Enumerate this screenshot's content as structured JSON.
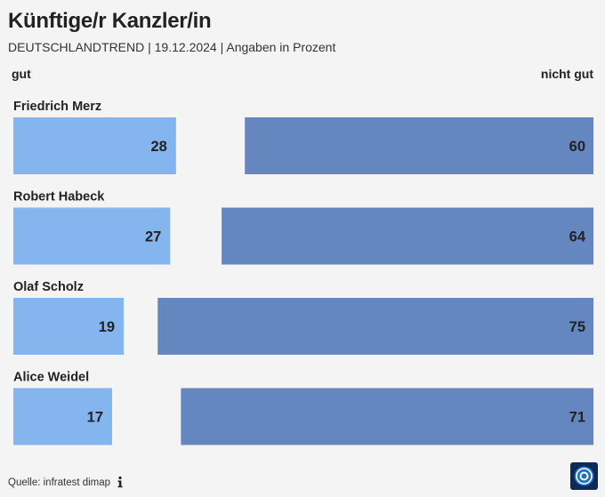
{
  "header": {
    "title": "Künftige/r Kanzler/in",
    "subtitle": "DEUTSCHLANDTREND | 19.12.2024 | Angaben in Prozent"
  },
  "columns": {
    "left": "gut",
    "right": "nicht gut"
  },
  "footer": {
    "source": "Quelle: infratest dimap",
    "info_icon": "info-icon",
    "logo_icon": "tagesschau-logo-icon"
  },
  "colors": {
    "gut": "#85b5ee",
    "nicht_gut": "#6387be",
    "background": "#f4f4f4"
  },
  "chart_data": {
    "type": "bar",
    "title": "Künftige/r Kanzler/in",
    "subtitle": "DEUTSCHLANDTREND | 19.12.2024 | Angaben in Prozent",
    "categories": [
      "Friedrich Merz",
      "Robert Habeck",
      "Olaf Scholz",
      "Alice Weidel"
    ],
    "series": [
      {
        "name": "gut",
        "values": [
          28,
          27,
          19,
          17
        ]
      },
      {
        "name": "nicht gut",
        "values": [
          60,
          64,
          75,
          71
        ]
      }
    ],
    "xlim": [
      0,
      100
    ],
    "legend": "top",
    "grid": false
  }
}
